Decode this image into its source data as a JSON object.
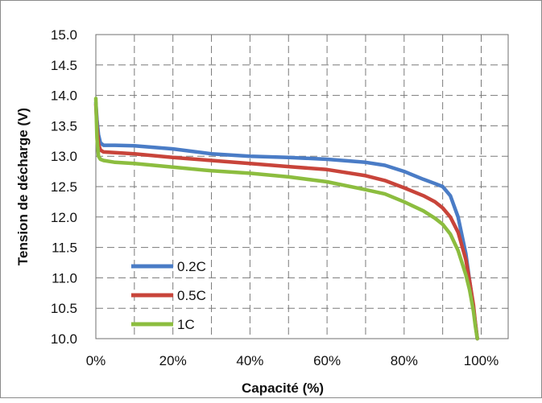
{
  "chart_data": {
    "type": "line",
    "xlabel": "Capacité (%)",
    "ylabel": "Tension de décharge (V)",
    "xlim": [
      0,
      107
    ],
    "ylim": [
      10.0,
      15.0
    ],
    "grid": true,
    "legend_position": "bottom-left",
    "x_ticks": [
      0,
      20,
      40,
      60,
      80,
      100
    ],
    "x_tick_labels": [
      "0%",
      "20%",
      "40%",
      "60%",
      "80%",
      "100%"
    ],
    "y_ticks": [
      10.0,
      10.5,
      11.0,
      11.5,
      12.0,
      12.5,
      13.0,
      13.5,
      14.0,
      14.5,
      15.0
    ],
    "y_tick_labels": [
      "10.0",
      "10.5",
      "11.0",
      "11.5",
      "12.0",
      "12.5",
      "13.0",
      "13.5",
      "14.0",
      "14.5",
      "15.0"
    ],
    "series": [
      {
        "name": "0.2C",
        "color": "#4a7cc6",
        "x": [
          0,
          0.3,
          0.7,
          1.2,
          2,
          5,
          10,
          20,
          30,
          40,
          50,
          60,
          70,
          75,
          80,
          85,
          88,
          90,
          92,
          94,
          96,
          97,
          98,
          98.5,
          99
        ],
        "y": [
          13.88,
          13.6,
          13.35,
          13.22,
          13.18,
          13.18,
          13.17,
          13.12,
          13.04,
          13.0,
          12.98,
          12.95,
          12.9,
          12.85,
          12.75,
          12.62,
          12.55,
          12.5,
          12.35,
          12.0,
          11.4,
          10.95,
          10.5,
          10.25,
          10.0
        ]
      },
      {
        "name": "0.5C",
        "color": "#c8443a",
        "x": [
          0,
          0.3,
          0.7,
          1.2,
          2,
          5,
          10,
          20,
          30,
          40,
          50,
          60,
          70,
          75,
          80,
          85,
          88,
          90,
          92,
          94,
          96,
          97,
          98,
          98.5,
          99
        ],
        "y": [
          13.85,
          13.5,
          13.2,
          13.1,
          13.07,
          13.06,
          13.04,
          12.98,
          12.93,
          12.88,
          12.83,
          12.78,
          12.68,
          12.6,
          12.48,
          12.35,
          12.25,
          12.15,
          12.0,
          11.75,
          11.3,
          10.95,
          10.55,
          10.25,
          10.0
        ]
      },
      {
        "name": "1C",
        "color": "#8cbd3f",
        "x": [
          0,
          0.3,
          0.7,
          1.2,
          2,
          5,
          10,
          20,
          30,
          40,
          50,
          60,
          70,
          75,
          80,
          85,
          88,
          90,
          92,
          94,
          96,
          97,
          98,
          98.5,
          99
        ],
        "y": [
          13.95,
          13.3,
          13.0,
          12.95,
          12.93,
          12.9,
          12.88,
          12.82,
          12.76,
          12.72,
          12.66,
          12.58,
          12.45,
          12.38,
          12.25,
          12.1,
          11.98,
          11.88,
          11.72,
          11.45,
          11.05,
          10.8,
          10.45,
          10.2,
          10.0
        ]
      }
    ]
  }
}
